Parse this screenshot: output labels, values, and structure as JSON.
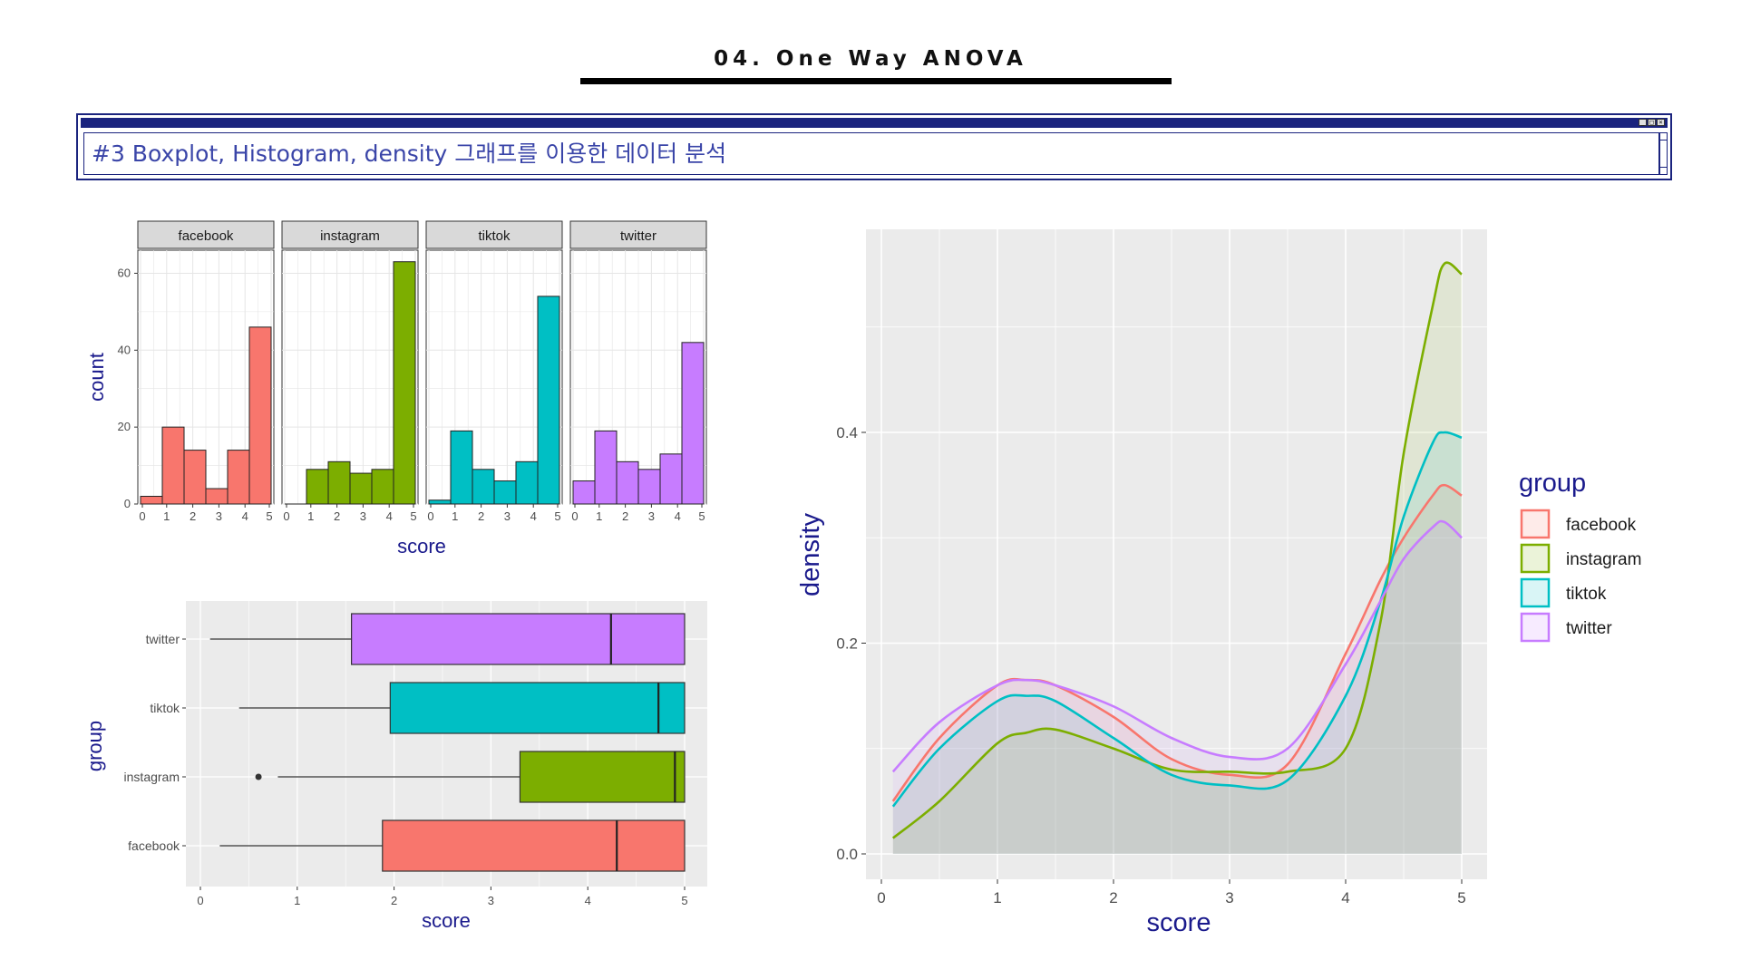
{
  "page": {
    "heading": "04. One Way ANOVA"
  },
  "window": {
    "title_text": "#3 Boxplot, Histogram, density 그래프를 이용한 데이터 분석"
  },
  "colors": {
    "facebook": "#F8766D",
    "instagram": "#7CAE00",
    "tiktok": "#00BFC4",
    "twitter": "#C77CFF",
    "panel_bg": "#EBEBEB",
    "axis_title": "#1a1a8c"
  },
  "chart_data": [
    {
      "type": "bar",
      "subtype": "faceted-histogram",
      "facets": [
        "facebook",
        "instagram",
        "tiktok",
        "twitter"
      ],
      "bin_centers": [
        0,
        1,
        2,
        3,
        4,
        5
      ],
      "xlabel": "score",
      "ylabel": "count",
      "xticks": [
        "0",
        "1",
        "2",
        "3",
        "4",
        "5"
      ],
      "yticks": [
        "0",
        "20",
        "40",
        "60"
      ],
      "ylim": [
        0,
        66
      ],
      "xlim": [
        0,
        5
      ],
      "series": [
        {
          "name": "facebook",
          "values": [
            2,
            20,
            14,
            4,
            14,
            46
          ]
        },
        {
          "name": "instagram",
          "values": [
            0,
            9,
            11,
            8,
            9,
            63
          ]
        },
        {
          "name": "tiktok",
          "values": [
            1,
            19,
            9,
            6,
            11,
            54
          ]
        },
        {
          "name": "twitter",
          "values": [
            6,
            19,
            11,
            9,
            13,
            42
          ]
        }
      ]
    },
    {
      "type": "boxplot",
      "orientation": "horizontal",
      "xlabel": "score",
      "ylabel": "group",
      "xticks": [
        "0",
        "1",
        "2",
        "3",
        "4",
        "5"
      ],
      "xlim": [
        0,
        5
      ],
      "categories": [
        "facebook",
        "instagram",
        "tiktok",
        "twitter"
      ],
      "boxes": [
        {
          "name": "facebook",
          "min": 0.2,
          "q1": 1.88,
          "median": 4.3,
          "q3": 5.0,
          "max": 5.0,
          "outliers": []
        },
        {
          "name": "instagram",
          "min": 0.8,
          "q1": 3.3,
          "median": 4.9,
          "q3": 5.0,
          "max": 5.0,
          "outliers": [
            0.6
          ]
        },
        {
          "name": "tiktok",
          "min": 0.4,
          "q1": 1.96,
          "median": 4.73,
          "q3": 5.0,
          "max": 5.0,
          "outliers": []
        },
        {
          "name": "twitter",
          "min": 0.1,
          "q1": 1.56,
          "median": 4.24,
          "q3": 5.0,
          "max": 5.0,
          "outliers": []
        }
      ]
    },
    {
      "type": "area",
      "subtype": "density",
      "xlabel": "score",
      "ylabel": "density",
      "xticks": [
        "0",
        "1",
        "2",
        "3",
        "4",
        "5"
      ],
      "yticks": [
        "0.0",
        "0.2",
        "0.4"
      ],
      "xlim": [
        0,
        5
      ],
      "ylim": [
        0,
        0.56
      ],
      "legend": {
        "title": "group",
        "position": "right"
      },
      "x": [
        0.1,
        0.5,
        1.0,
        1.25,
        1.5,
        2.0,
        2.5,
        3.0,
        3.5,
        4.0,
        4.3,
        4.5,
        4.75,
        4.85,
        5.0
      ],
      "series": [
        {
          "name": "facebook",
          "values": [
            0.05,
            0.11,
            0.16,
            0.165,
            0.16,
            0.13,
            0.09,
            0.075,
            0.085,
            0.19,
            0.26,
            0.3,
            0.34,
            0.35,
            0.34
          ]
        },
        {
          "name": "instagram",
          "values": [
            0.015,
            0.05,
            0.105,
            0.115,
            0.118,
            0.1,
            0.08,
            0.078,
            0.078,
            0.1,
            0.22,
            0.38,
            0.52,
            0.56,
            0.55
          ]
        },
        {
          "name": "tiktok",
          "values": [
            0.045,
            0.1,
            0.145,
            0.15,
            0.145,
            0.11,
            0.075,
            0.065,
            0.07,
            0.15,
            0.24,
            0.32,
            0.39,
            0.4,
            0.395
          ]
        },
        {
          "name": "twitter",
          "values": [
            0.078,
            0.125,
            0.16,
            0.165,
            0.16,
            0.14,
            0.11,
            0.092,
            0.1,
            0.18,
            0.24,
            0.28,
            0.31,
            0.315,
            0.3
          ]
        }
      ]
    }
  ]
}
